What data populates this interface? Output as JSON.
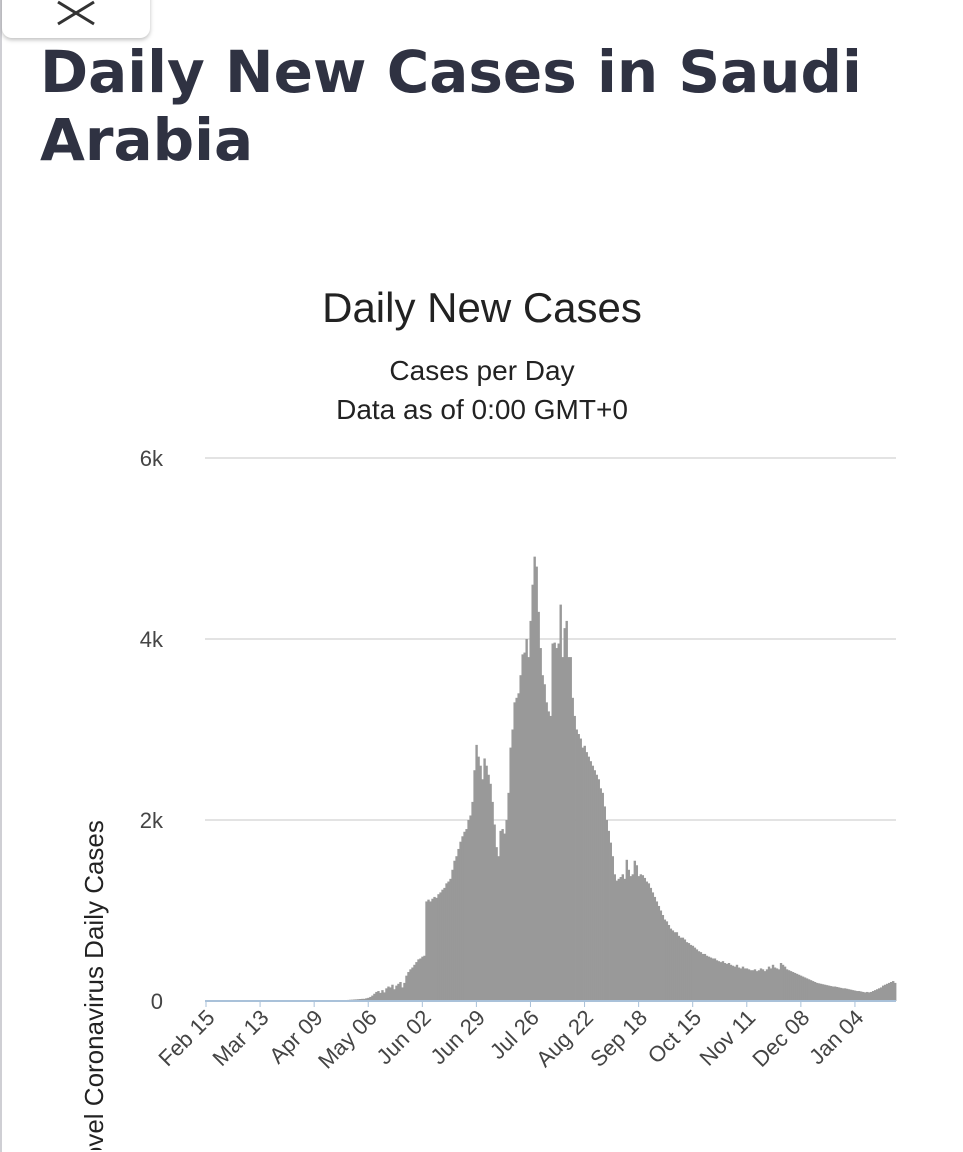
{
  "header": {
    "page_title": "Daily New Cases in Saudi Arabia",
    "close_icon": "close-icon"
  },
  "chart_data": {
    "type": "bar",
    "title": "Daily New Cases",
    "subtitle": "Cases per Day",
    "subtitle2": "Data as of 0:00 GMT+0",
    "ylabel": "Novel Coronavirus Daily Cases",
    "xlabel": "",
    "ylim": [
      0,
      6000
    ],
    "y_ticks": [
      {
        "value": 0,
        "label": "0"
      },
      {
        "value": 2000,
        "label": "2k"
      },
      {
        "value": 4000,
        "label": "4k"
      },
      {
        "value": 6000,
        "label": "6k"
      }
    ],
    "x_tick_labels": [
      "Feb 15",
      "Mar 13",
      "Apr 09",
      "May 06",
      "Jun 02",
      "Jun 29",
      "Jul 26",
      "Aug 22",
      "Sep 18",
      "Oct 15",
      "Nov 11",
      "Dec 08",
      "Jan 04"
    ],
    "x_tick_step_days": 27,
    "start_date": "Feb 15",
    "bar_color": "#999999",
    "baseline_color": "#a9c1d9",
    "grid_color": "#e3e3e3",
    "values": [
      0,
      0,
      0,
      0,
      0,
      0,
      0,
      0,
      0,
      0,
      0,
      0,
      0,
      0,
      0,
      0,
      0,
      0,
      0,
      0,
      0,
      0,
      0,
      0,
      0,
      0,
      0,
      0,
      0,
      0,
      0,
      0,
      0,
      0,
      0,
      0,
      0,
      0,
      0,
      0,
      0,
      0,
      0,
      0,
      0,
      0,
      0,
      0,
      0,
      0,
      0,
      0,
      0,
      0,
      0,
      0,
      0,
      0,
      0,
      0,
      1,
      2,
      3,
      4,
      5,
      6,
      6,
      7,
      8,
      10,
      11,
      12,
      14,
      15,
      17,
      18,
      20,
      22,
      24,
      24,
      30,
      35,
      45,
      60,
      80,
      100,
      110,
      90,
      120,
      95,
      140,
      160,
      150,
      180,
      130,
      170,
      190,
      210,
      150,
      200,
      280,
      320,
      350,
      370,
      400,
      430,
      460,
      470,
      490,
      500,
      1100,
      1120,
      1100,
      1130,
      1150,
      1140,
      1180,
      1200,
      1230,
      1250,
      1300,
      1320,
      1350,
      1450,
      1550,
      1600,
      1680,
      1760,
      1820,
      1870,
      1900,
      2000,
      2050,
      2200,
      2550,
      2830,
      2700,
      2600,
      2450,
      2680,
      2600,
      2500,
      2400,
      2200,
      1950,
      1700,
      1600,
      1880,
      1900,
      1850,
      2000,
      2300,
      2800,
      3000,
      3300,
      3350,
      3400,
      3600,
      3830,
      3850,
      4000,
      3800,
      4200,
      4600,
      4910,
      4800,
      4300,
      3900,
      3600,
      3500,
      3300,
      3200,
      3150,
      3950,
      3960,
      3900,
      3950,
      4380,
      3800,
      4120,
      4200,
      3800,
      3800,
      3350,
      3150,
      3000,
      2950,
      2900,
      2800,
      2820,
      2750,
      2700,
      2650,
      2600,
      2550,
      2500,
      2450,
      2350,
      2300,
      2150,
      2000,
      1880,
      1750,
      1600,
      1400,
      1330,
      1350,
      1370,
      1400,
      1350,
      1560,
      1450,
      1380,
      1400,
      1550,
      1500,
      1380,
      1400,
      1390,
      1360,
      1320,
      1300,
      1250,
      1200,
      1150,
      1100,
      1050,
      1000,
      950,
      900,
      880,
      840,
      800,
      780,
      760,
      760,
      720,
      700,
      700,
      680,
      650,
      640,
      620,
      610,
      590,
      570,
      550,
      540,
      520,
      520,
      500,
      490,
      480,
      470,
      470,
      450,
      440,
      430,
      440,
      420,
      410,
      420,
      400,
      390,
      380,
      400,
      370,
      360,
      380,
      360,
      360,
      350,
      340,
      340,
      350,
      330,
      340,
      360,
      350,
      330,
      350,
      380,
      360,
      400,
      370,
      360,
      350,
      420,
      400,
      380,
      350,
      340,
      330,
      320,
      310,
      300,
      290,
      280,
      270,
      260,
      250,
      240,
      230,
      220,
      210,
      200,
      195,
      190,
      185,
      180,
      175,
      170,
      165,
      160,
      160,
      155,
      150,
      145,
      140,
      140,
      135,
      130,
      125,
      120,
      115,
      110,
      110,
      105,
      100,
      95,
      100,
      95,
      100,
      110,
      120,
      130,
      140,
      150,
      170,
      180,
      190,
      200,
      210,
      220,
      200
    ]
  }
}
